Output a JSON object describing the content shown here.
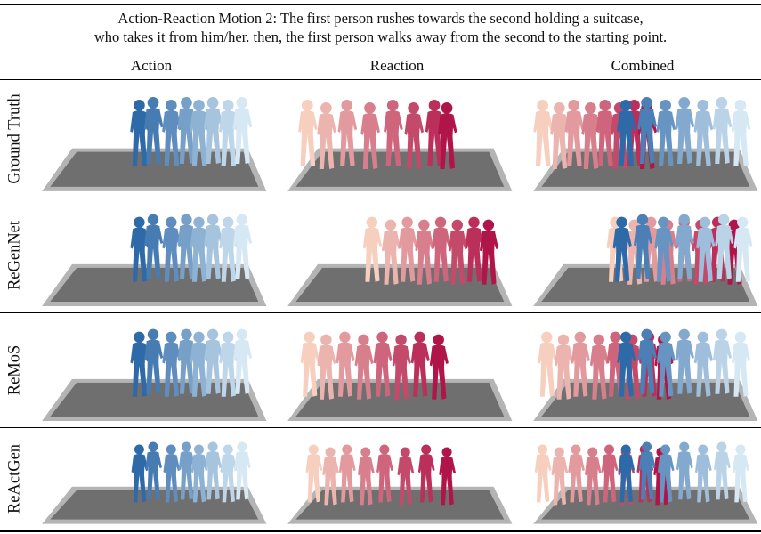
{
  "caption": {
    "line1": "Action-Reaction Motion 2: The first person rushes towards the second holding a suitcase,",
    "line2": "who takes it from him/her. then, the first person walks away from the second to the starting point."
  },
  "columns": [
    "Action",
    "Reaction",
    "Combined"
  ],
  "rows": [
    {
      "label": "Ground Truth",
      "panels": [
        {
          "blue": [
            0.1,
            0.2,
            0.33,
            0.44,
            0.53,
            0.63,
            0.74,
            0.84
          ],
          "red": []
        },
        {
          "blue": [],
          "red": [
            0.05,
            0.14,
            0.24,
            0.35,
            0.46,
            0.56,
            0.66,
            0.72
          ]
        },
        {
          "blue": [
            0.4,
            0.5,
            0.59,
            0.68,
            0.77,
            0.86,
            0.95
          ],
          "red": [
            0.0,
            0.08,
            0.15,
            0.23,
            0.3,
            0.37,
            0.44,
            0.5
          ]
        }
      ]
    },
    {
      "label": "ReGenNet",
      "panels": [
        {
          "blue": [
            0.1,
            0.2,
            0.33,
            0.44,
            0.53,
            0.63,
            0.74,
            0.84
          ],
          "red": []
        },
        {
          "blue": [],
          "red": [
            0.36,
            0.45,
            0.53,
            0.61,
            0.69,
            0.77,
            0.85,
            0.92
          ]
        },
        {
          "blue": [
            0.38,
            0.48,
            0.58,
            0.68,
            0.78,
            0.87,
            0.96
          ],
          "red": [
            0.35,
            0.44,
            0.52,
            0.6,
            0.68,
            0.76,
            0.84,
            0.92
          ]
        }
      ]
    },
    {
      "label": "ReMoS",
      "panels": [
        {
          "blue": [
            0.1,
            0.2,
            0.33,
            0.44,
            0.53,
            0.63,
            0.74,
            0.84
          ],
          "red": []
        },
        {
          "blue": [],
          "red": [
            0.06,
            0.14,
            0.23,
            0.32,
            0.41,
            0.5,
            0.59,
            0.68
          ]
        },
        {
          "blue": [
            0.4,
            0.5,
            0.59,
            0.68,
            0.77,
            0.86,
            0.95
          ],
          "red": [
            0.02,
            0.1,
            0.18,
            0.27,
            0.35,
            0.43,
            0.51,
            0.58
          ]
        }
      ]
    },
    {
      "label": "ReActGen",
      "panels": [
        {
          "blue": [
            0.1,
            0.2,
            0.33,
            0.44,
            0.53,
            0.63,
            0.74,
            0.84
          ],
          "red": []
        },
        {
          "blue": [],
          "red": [
            0.08,
            0.16,
            0.24,
            0.33,
            0.42,
            0.52,
            0.62,
            0.72
          ]
        },
        {
          "blue": [
            0.4,
            0.5,
            0.59,
            0.68,
            0.77,
            0.86,
            0.95
          ],
          "red": [
            0.0,
            0.08,
            0.16,
            0.24,
            0.32,
            0.4,
            0.49,
            0.57
          ]
        }
      ]
    }
  ],
  "colors": {
    "blue_dark": "#2f6aa8",
    "blue_light": "#d6e8f4",
    "red_dark": "#b0154a",
    "red_light": "#f6cfbf",
    "floor_outer": "#b4b4b4",
    "floor_inner": "#6f6f6f"
  }
}
